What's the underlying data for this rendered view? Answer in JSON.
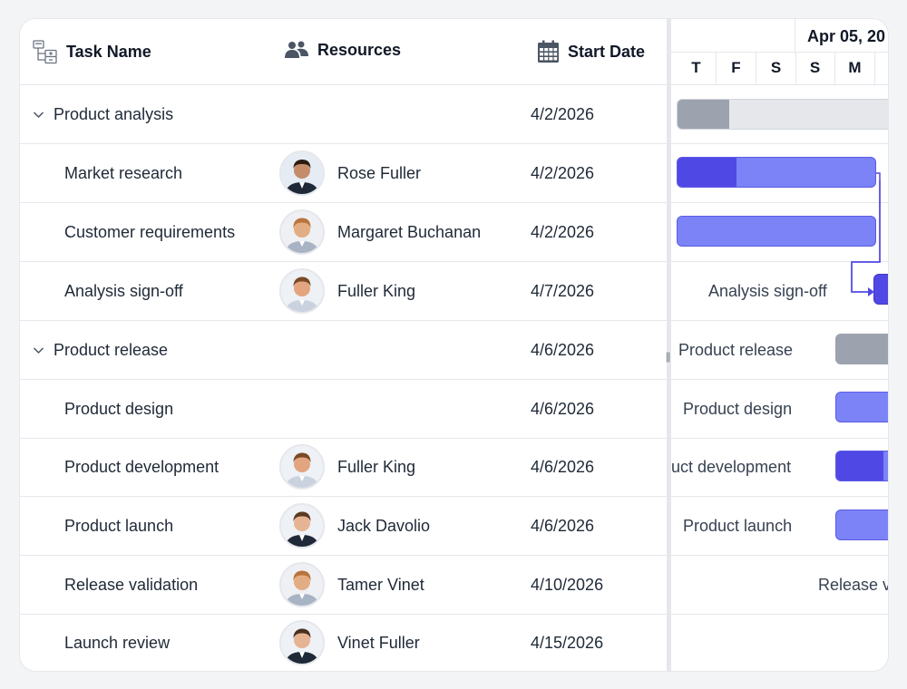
{
  "columns": {
    "task_name": "Task Name",
    "resources": "Resources",
    "start_date": "Start Date"
  },
  "rows": [
    {
      "task": "Product analysis",
      "resource": "",
      "start": "4/2/2026",
      "parent": true
    },
    {
      "task": "Market research",
      "resource": "Rose Fuller",
      "start": "4/2/2026",
      "parent": false
    },
    {
      "task": "Customer requirements",
      "resource": "Margaret Buchanan",
      "start": "4/2/2026",
      "parent": false
    },
    {
      "task": "Analysis sign-off",
      "resource": "Fuller King",
      "start": "4/7/2026",
      "parent": false
    },
    {
      "task": "Product release",
      "resource": "",
      "start": "4/6/2026",
      "parent": true
    },
    {
      "task": "Product design",
      "resource": "",
      "start": "4/6/2026",
      "parent": false
    },
    {
      "task": "Product development",
      "resource": "Fuller King",
      "start": "4/6/2026",
      "parent": false
    },
    {
      "task": "Product launch",
      "resource": "Jack Davolio",
      "start": "4/6/2026",
      "parent": false
    },
    {
      "task": "Release validation",
      "resource": "Tamer Vinet",
      "start": "4/10/2026",
      "parent": false
    },
    {
      "task": "Launch review",
      "resource": "Vinet Fuller",
      "start": "4/15/2026",
      "parent": false
    }
  ],
  "timeline": {
    "week_label": "Apr 05, 20",
    "days": [
      "T",
      "F",
      "S",
      "S",
      "M"
    ]
  },
  "chart_labels": {
    "analysis_signoff": "Analysis sign-off",
    "product_release": "Product release",
    "product_design": "Product design",
    "product_development": "uct development",
    "product_launch": "Product launch",
    "release_validation": "Release v"
  },
  "progress": {
    "product_analysis": 0.24,
    "market_research": 0.3
  },
  "colors": {
    "task_bar": "#7b83f7",
    "task_progress": "#5048e5",
    "summary_bar": "#e5e7eb",
    "summary_progress": "#9ca3af",
    "connector": "#5048e5"
  }
}
